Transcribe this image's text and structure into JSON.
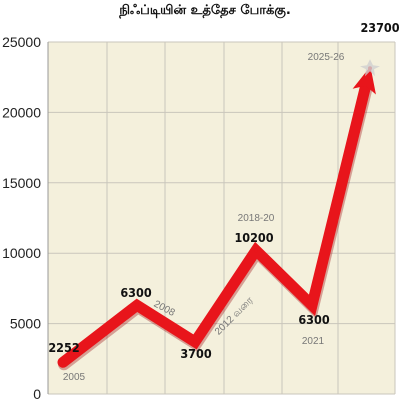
{
  "chart_data": {
    "type": "line",
    "title": "நிஃப்டியின் உத்தேச போக்கு.",
    "ylim": [
      0,
      25000
    ],
    "y_ticks": [
      "0",
      "5000",
      "10000",
      "15000",
      "20000",
      "25000"
    ],
    "grid": true,
    "points": [
      {
        "value": 2252,
        "label": "2252",
        "period": "2005"
      },
      {
        "value": 6300,
        "label": "6300",
        "period": "2008"
      },
      {
        "value": 3700,
        "label": "3700",
        "period": "2012 வரை"
      },
      {
        "value": 10200,
        "label": "10200",
        "period": "2018-20"
      },
      {
        "value": 6300,
        "label": "6300",
        "period": "2021"
      },
      {
        "value": 23700,
        "label": "23700",
        "period": "2025-26"
      }
    ],
    "colors": {
      "line": "#e8151b",
      "plot_bg": "#f4f0dc",
      "grid": "#c9c6bb"
    }
  }
}
